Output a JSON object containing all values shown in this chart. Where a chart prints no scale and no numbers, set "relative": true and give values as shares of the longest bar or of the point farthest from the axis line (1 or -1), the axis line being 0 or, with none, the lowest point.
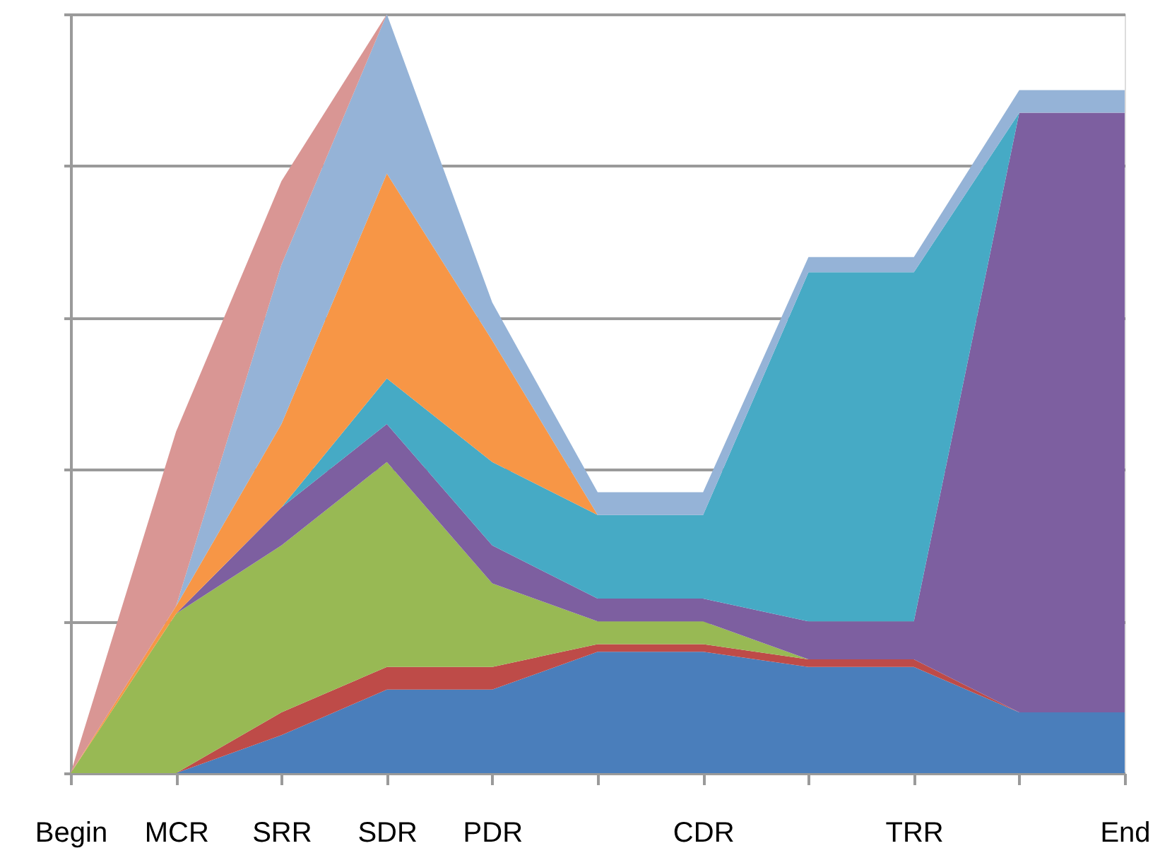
{
  "chart_data": {
    "type": "area",
    "stacked": true,
    "relative": true,
    "grid": "y",
    "categories": [
      "Begin",
      "MCR",
      "SRR",
      "SDR",
      "PDR",
      null,
      "CDR",
      null,
      "TRR",
      null,
      "End"
    ],
    "series": [
      {
        "color": "#4a7ebb",
        "values": [
          0,
          0,
          0.05,
          0.11,
          0.11,
          0.16,
          0.16,
          0.14,
          0.14,
          0.08,
          0.08
        ]
      },
      {
        "color": "#be4b48",
        "values": [
          null,
          0,
          0.03,
          0.03,
          0.03,
          0.01,
          0.01,
          0.01,
          0.01,
          0,
          null
        ]
      },
      {
        "color": "#98b954",
        "values": [
          0,
          0.21,
          0.22,
          0.27,
          0.11,
          0.03,
          0.03,
          0,
          null,
          null,
          null
        ]
      },
      {
        "color": "#7d5fa0",
        "values": [
          0,
          0,
          0.05,
          0.05,
          0.05,
          0.03,
          0.03,
          0.05,
          0.05,
          0.79,
          0.79
        ]
      },
      {
        "color": "#46aac5",
        "values": [
          null,
          0,
          0,
          0.06,
          0.11,
          0.11,
          0.11,
          0.46,
          0.46,
          0,
          null
        ]
      },
      {
        "color": "#f79646",
        "values": [
          0,
          0.01,
          0.11,
          0.27,
          0.16,
          0,
          null,
          null,
          null,
          null,
          null
        ]
      },
      {
        "color": "#95b3d7",
        "values": [
          0,
          0,
          0.21,
          0.21,
          0.05,
          0.03,
          0.03,
          0.02,
          0.02,
          0.03,
          0.03
        ]
      },
      {
        "color": "#d99694",
        "values": [
          0,
          0.23,
          0.11,
          0,
          null,
          null,
          null,
          null,
          null,
          null,
          null
        ]
      }
    ]
  }
}
